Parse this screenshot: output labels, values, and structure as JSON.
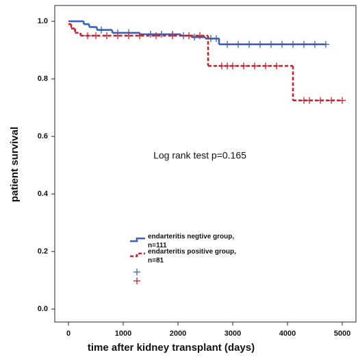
{
  "chart_data": {
    "type": "step",
    "ylabel": "patient survival",
    "xlabel": "time after kidney transplant (days)",
    "annotation": "Log rank test p=0.165",
    "xlim": [
      -250,
      5250
    ],
    "ylim": [
      -0.045,
      1.055
    ],
    "xticks": [
      0,
      1000,
      2000,
      3000,
      4000,
      5000
    ],
    "yticks": [
      {
        "value": 0,
        "label": "0.0"
      },
      0.2,
      0.4,
      0.6,
      0.8,
      {
        "value": 1,
        "label": "1.0"
      }
    ],
    "series": [
      {
        "name": "endarteritis negtive group, n=111",
        "color": "#3a5fb8",
        "dash": false,
        "x": [
          0,
          280,
          380,
          520,
          800,
          1300,
          2050,
          2250,
          2500,
          2750,
          4700
        ],
        "values": [
          1.0,
          0.99,
          0.98,
          0.97,
          0.96,
          0.955,
          0.95,
          0.945,
          0.94,
          0.92,
          0.92
        ],
        "censored_x": [
          600,
          900,
          1100,
          1500,
          1700,
          1900,
          2100,
          2300,
          2600,
          2700,
          2900,
          3100,
          3300,
          3500,
          3700,
          3900,
          4100,
          4300,
          4500,
          4700
        ],
        "censored_values": [
          0.97,
          0.96,
          0.96,
          0.955,
          0.955,
          0.955,
          0.95,
          0.945,
          0.94,
          0.94,
          0.92,
          0.92,
          0.92,
          0.92,
          0.92,
          0.92,
          0.92,
          0.92,
          0.92,
          0.92
        ]
      },
      {
        "name": "endarteritis positive group, n=81",
        "color": "#c0262d",
        "dash": true,
        "x": [
          0,
          50,
          120,
          220,
          2550,
          4100,
          5000
        ],
        "values": [
          0.99,
          0.975,
          0.96,
          0.95,
          0.845,
          0.725,
          0.725
        ],
        "censored_x": [
          350,
          500,
          700,
          900,
          1100,
          1300,
          1600,
          1900,
          2200,
          2400,
          2800,
          2900,
          3000,
          3200,
          3400,
          3600,
          3800,
          4300,
          4400,
          4600,
          4800,
          5000
        ],
        "censored_values": [
          0.95,
          0.95,
          0.95,
          0.95,
          0.95,
          0.95,
          0.95,
          0.95,
          0.95,
          0.95,
          0.845,
          0.845,
          0.845,
          0.845,
          0.845,
          0.845,
          0.845,
          0.725,
          0.725,
          0.725,
          0.725,
          0.725
        ]
      }
    ]
  }
}
